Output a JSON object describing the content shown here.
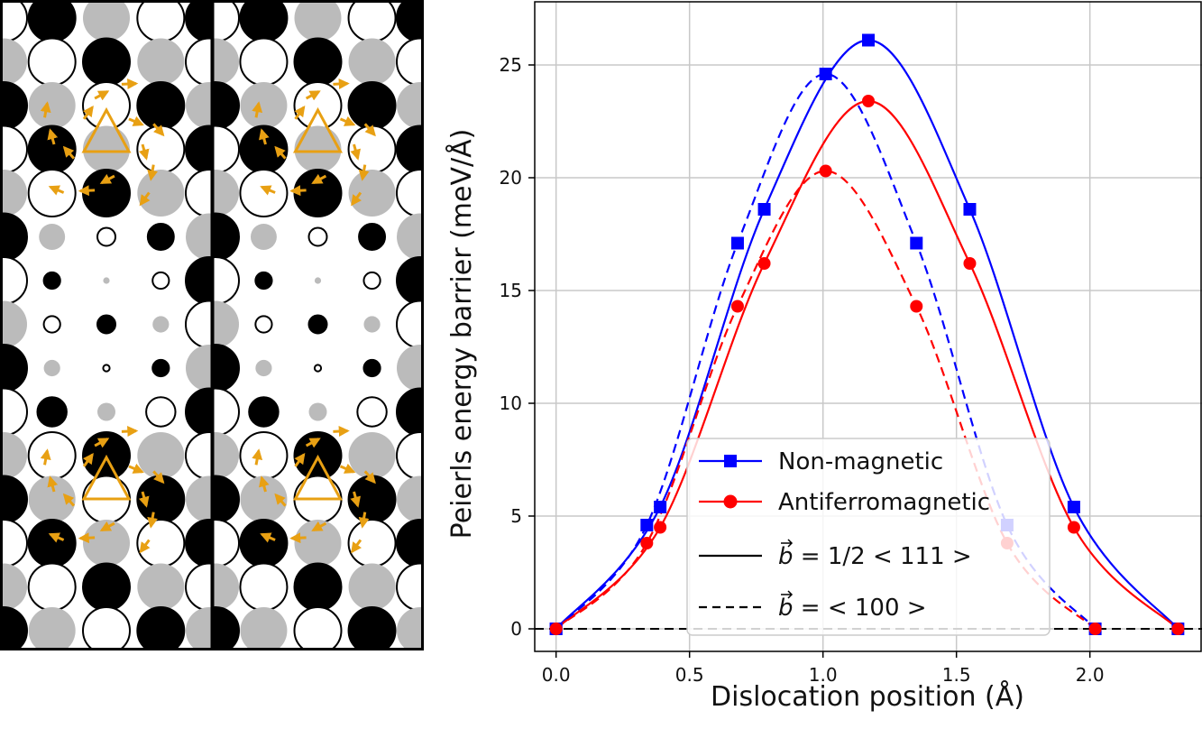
{
  "colors": {
    "blue": "#0000ff",
    "red": "#ff0000",
    "arrow": "#e8a013",
    "atom_black": "#000000",
    "atom_gray": "#bbbbbb",
    "grid": "#c8c8c8"
  },
  "structure_panels": {
    "count": 2,
    "description_icon": "atom-lattice-icon"
  },
  "chart_data": {
    "type": "line",
    "xlabel": "Dislocation position (Å)",
    "ylabel": "Peierls energy barrier (meV/Å)",
    "xlim": [
      -0.08,
      2.42
    ],
    "ylim": [
      -1.0,
      27.8
    ],
    "xticks": [
      0.0,
      0.5,
      1.0,
      1.5,
      2.0
    ],
    "xtick_labels": [
      "0.0",
      "0.5",
      "1.0",
      "1.5",
      "2.0"
    ],
    "yticks": [
      0,
      5,
      10,
      15,
      20,
      25
    ],
    "ytick_labels": [
      "0",
      "5",
      "10",
      "15",
      "20",
      "25"
    ],
    "grid": true,
    "reference_line_y": 0,
    "legend": {
      "placement": "lower-right",
      "entries": [
        {
          "label": "Non-magnetic",
          "style": "marker-square",
          "color": "#0000ff"
        },
        {
          "label": "Antiferromagnetic",
          "style": "marker-circle",
          "color": "#ff0000"
        },
        {
          "label_prefix": "b",
          "label_suffix": " = 1/2 < 111 >",
          "style": "solid",
          "color": "#000000"
        },
        {
          "label_prefix": "b",
          "label_suffix": " = < 100 >",
          "style": "dashed",
          "color": "#000000"
        }
      ]
    },
    "series": [
      {
        "name": "Non-magnetic, b = 1/2<111>",
        "color": "#0000ff",
        "marker": "square",
        "dash": "solid",
        "x": [
          0.0,
          0.39,
          0.78,
          1.17,
          1.55,
          1.94,
          2.33
        ],
        "y": [
          0.0,
          5.4,
          18.6,
          26.1,
          18.6,
          5.4,
          0.0
        ]
      },
      {
        "name": "Antiferromagnetic, b = 1/2<111>",
        "color": "#ff0000",
        "marker": "circle",
        "dash": "solid",
        "x": [
          0.0,
          0.39,
          0.78,
          1.17,
          1.55,
          1.94,
          2.33
        ],
        "y": [
          0.0,
          4.5,
          16.2,
          23.4,
          16.2,
          4.5,
          0.0
        ]
      },
      {
        "name": "Non-magnetic, b = <100>",
        "color": "#0000ff",
        "marker": "square",
        "dash": "dashed",
        "x": [
          0.0,
          0.34,
          0.68,
          1.01,
          1.35,
          1.69,
          2.02
        ],
        "y": [
          0.0,
          4.6,
          17.1,
          24.6,
          17.1,
          4.6,
          0.0
        ]
      },
      {
        "name": "Antiferromagnetic, b = <100>",
        "color": "#ff0000",
        "marker": "circle",
        "dash": "dashed",
        "x": [
          0.0,
          0.34,
          0.68,
          1.01,
          1.35,
          1.69,
          2.02
        ],
        "y": [
          0.0,
          3.8,
          14.3,
          20.3,
          14.3,
          3.8,
          0.0
        ]
      }
    ]
  }
}
